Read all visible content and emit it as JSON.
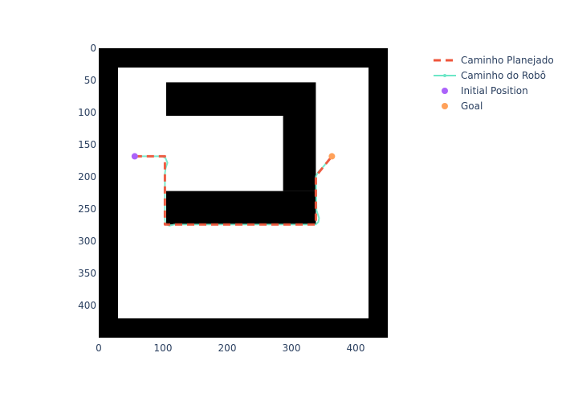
{
  "chart_data": {
    "type": "line",
    "title": "",
    "xlabel": "",
    "ylabel": "",
    "xlim": [
      0,
      450
    ],
    "ylim": [
      450,
      0
    ],
    "y_reversed": true,
    "x_ticks": [
      0,
      100,
      200,
      300,
      400
    ],
    "y_ticks": [
      0,
      50,
      100,
      150,
      200,
      250,
      300,
      350,
      400
    ],
    "grid": false,
    "legend_position": "top-right",
    "map": {
      "background": "#000000",
      "free_space": "#ffffff",
      "free_regions": [
        {
          "x0": 30,
          "y0": 30,
          "x1": 420,
          "y1": 420
        }
      ],
      "obstacles": [
        {
          "x0": 105,
          "y0": 53,
          "x1": 338,
          "y1": 105
        },
        {
          "x0": 287,
          "y0": 105,
          "x1": 338,
          "y1": 222
        },
        {
          "x0": 105,
          "y0": 222,
          "x1": 338,
          "y1": 274
        }
      ]
    },
    "series": [
      {
        "name": "Caminho Planejado",
        "style": "dash",
        "color": "#EF553B",
        "x": [
          56,
          103,
          103,
          338,
          338,
          363
        ],
        "y": [
          168,
          168,
          274,
          274,
          199,
          168
        ]
      },
      {
        "name": "Caminho do Robô",
        "style": "line",
        "color": "#6DE7C7",
        "x": [
          56,
          99,
          104,
          107,
          104,
          103,
          103,
          104,
          110,
          118,
          338,
          342,
          343,
          339,
          338,
          342,
          348,
          363
        ],
        "y": [
          168,
          168,
          171,
          178,
          187,
          195,
          266,
          273,
          276,
          274,
          274,
          270,
          264,
          252,
          199,
          192,
          186,
          168
        ]
      },
      {
        "name": "Initial Position",
        "style": "marker",
        "color": "#AB63FA",
        "x": [
          56
        ],
        "y": [
          168
        ]
      },
      {
        "name": "Goal",
        "style": "marker",
        "color": "#FFA15A",
        "x": [
          363
        ],
        "y": [
          168
        ]
      }
    ]
  }
}
